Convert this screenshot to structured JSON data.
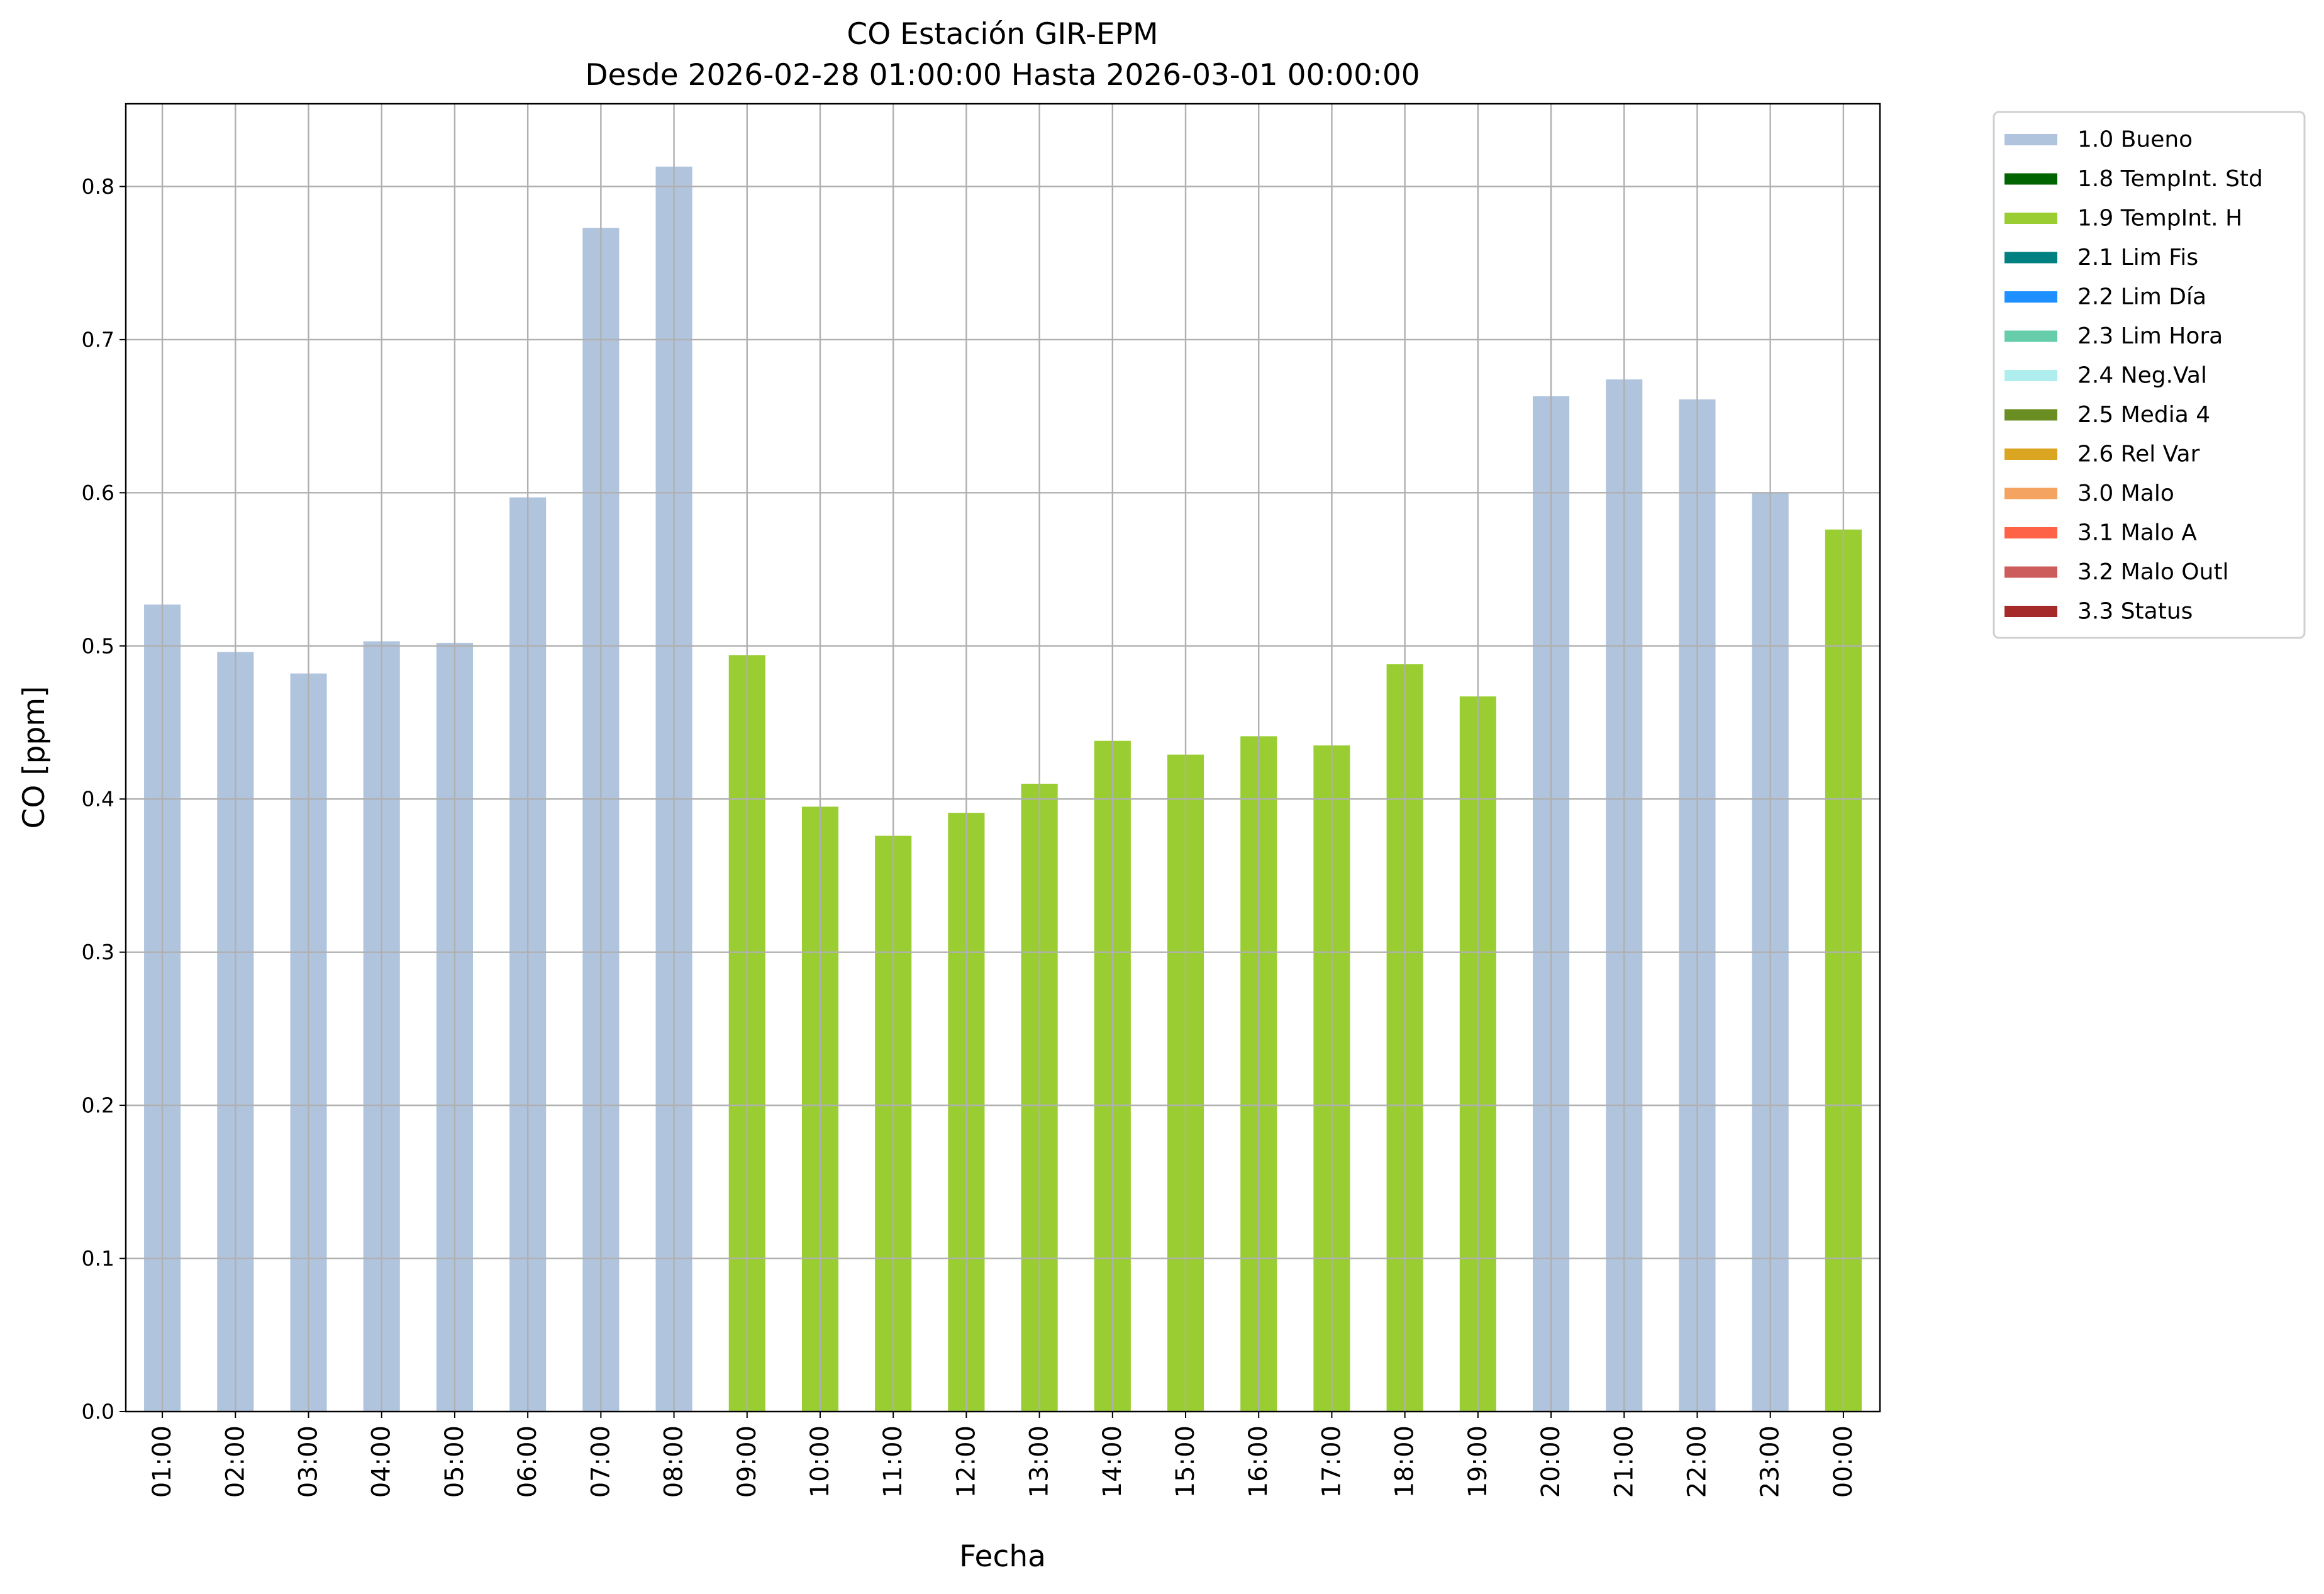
{
  "chart_data": {
    "type": "bar",
    "title": "CO Estación GIR-EPM",
    "subtitle": "Desde 2026-02-28 01:00:00 Hasta 2026-03-01 00:00:00",
    "xlabel": "Fecha",
    "ylabel": "CO [ppm]",
    "ylim": [
      0,
      0.854
    ],
    "yticks": [
      "0.0",
      "0.1",
      "0.2",
      "0.3",
      "0.4",
      "0.5",
      "0.6",
      "0.7",
      "0.8"
    ],
    "grid": true,
    "legend_position": "outside-top-right",
    "categories": [
      "01:00",
      "02:00",
      "03:00",
      "04:00",
      "05:00",
      "06:00",
      "07:00",
      "08:00",
      "09:00",
      "10:00",
      "11:00",
      "12:00",
      "13:00",
      "14:00",
      "15:00",
      "16:00",
      "17:00",
      "18:00",
      "19:00",
      "20:00",
      "21:00",
      "22:00",
      "23:00",
      "00:00"
    ],
    "values": [
      0.527,
      0.496,
      0.482,
      0.503,
      0.502,
      0.597,
      0.773,
      0.813,
      0.494,
      0.395,
      0.376,
      0.391,
      0.41,
      0.438,
      0.429,
      0.441,
      0.435,
      0.488,
      0.467,
      0.663,
      0.674,
      0.661,
      0.6,
      0.576
    ],
    "flags": [
      "1.0 Bueno",
      "1.0 Bueno",
      "1.0 Bueno",
      "1.0 Bueno",
      "1.0 Bueno",
      "1.0 Bueno",
      "1.0 Bueno",
      "1.0 Bueno",
      "1.9 TempInt. H",
      "1.9 TempInt. H",
      "1.9 TempInt. H",
      "1.9 TempInt. H",
      "1.9 TempInt. H",
      "1.9 TempInt. H",
      "1.9 TempInt. H",
      "1.9 TempInt. H",
      "1.9 TempInt. H",
      "1.9 TempInt. H",
      "1.9 TempInt. H",
      "1.0 Bueno",
      "1.0 Bueno",
      "1.0 Bueno",
      "1.0 Bueno",
      "1.9 TempInt. H"
    ],
    "legend": [
      {
        "name": "1.0 Bueno",
        "color": "#b0c4de"
      },
      {
        "name": "1.8 TempInt. Std",
        "color": "#006400"
      },
      {
        "name": "1.9 TempInt. H",
        "color": "#9acd32"
      },
      {
        "name": "2.1 Lim Fis",
        "color": "#008080"
      },
      {
        "name": "2.2 Lim Día",
        "color": "#1e90ff"
      },
      {
        "name": "2.3 Lim Hora",
        "color": "#66cdaa"
      },
      {
        "name": "2.4 Neg.Val",
        "color": "#afeeee"
      },
      {
        "name": "2.5 Media 4",
        "color": "#6b8e23"
      },
      {
        "name": "2.6 Rel Var",
        "color": "#daa520"
      },
      {
        "name": "3.0 Malo",
        "color": "#f4a460"
      },
      {
        "name": "3.1 Malo A",
        "color": "#ff6347"
      },
      {
        "name": "3.2 Malo Outl",
        "color": "#cd5c5c"
      },
      {
        "name": "3.3 Status",
        "color": "#a52a2a"
      }
    ]
  }
}
